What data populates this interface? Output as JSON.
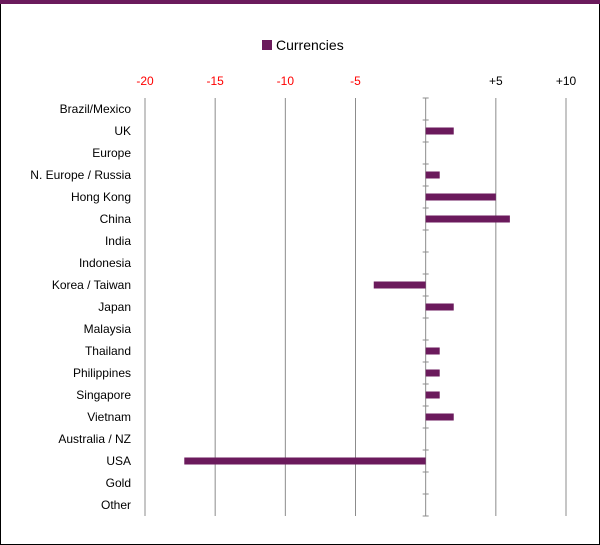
{
  "chart_data": {
    "type": "bar",
    "orientation": "horizontal",
    "legend_position": "top",
    "grid": true,
    "xlim": [
      -20,
      10
    ],
    "x_ticks": [
      -20,
      -15,
      -10,
      -5,
      5,
      10
    ],
    "x_tick_labels": [
      "-20",
      "-15",
      "-10",
      "-5",
      "+5",
      "+10"
    ],
    "negative_tick_color": "#ff0000",
    "positive_tick_color": "#000000",
    "categories": [
      "Brazil/Mexico",
      "UK",
      "Europe",
      "N. Europe / Russia",
      "Hong Kong",
      "China",
      "India",
      "Indonesia",
      "Korea / Taiwan",
      "Japan",
      "Malaysia",
      "Thailand",
      "Philippines",
      "Singapore",
      "Vietnam",
      "Australia / NZ",
      "USA",
      "Gold",
      "Other"
    ],
    "series": [
      {
        "name": "Currencies",
        "color": "#6b1a5c",
        "values": [
          0,
          2,
          0,
          1,
          5,
          6,
          0,
          0,
          -3.7,
          2,
          0,
          1,
          1,
          1,
          2,
          0,
          -17.2,
          0,
          0
        ]
      }
    ]
  },
  "colors": {
    "topbar": "#6b1a5c"
  }
}
